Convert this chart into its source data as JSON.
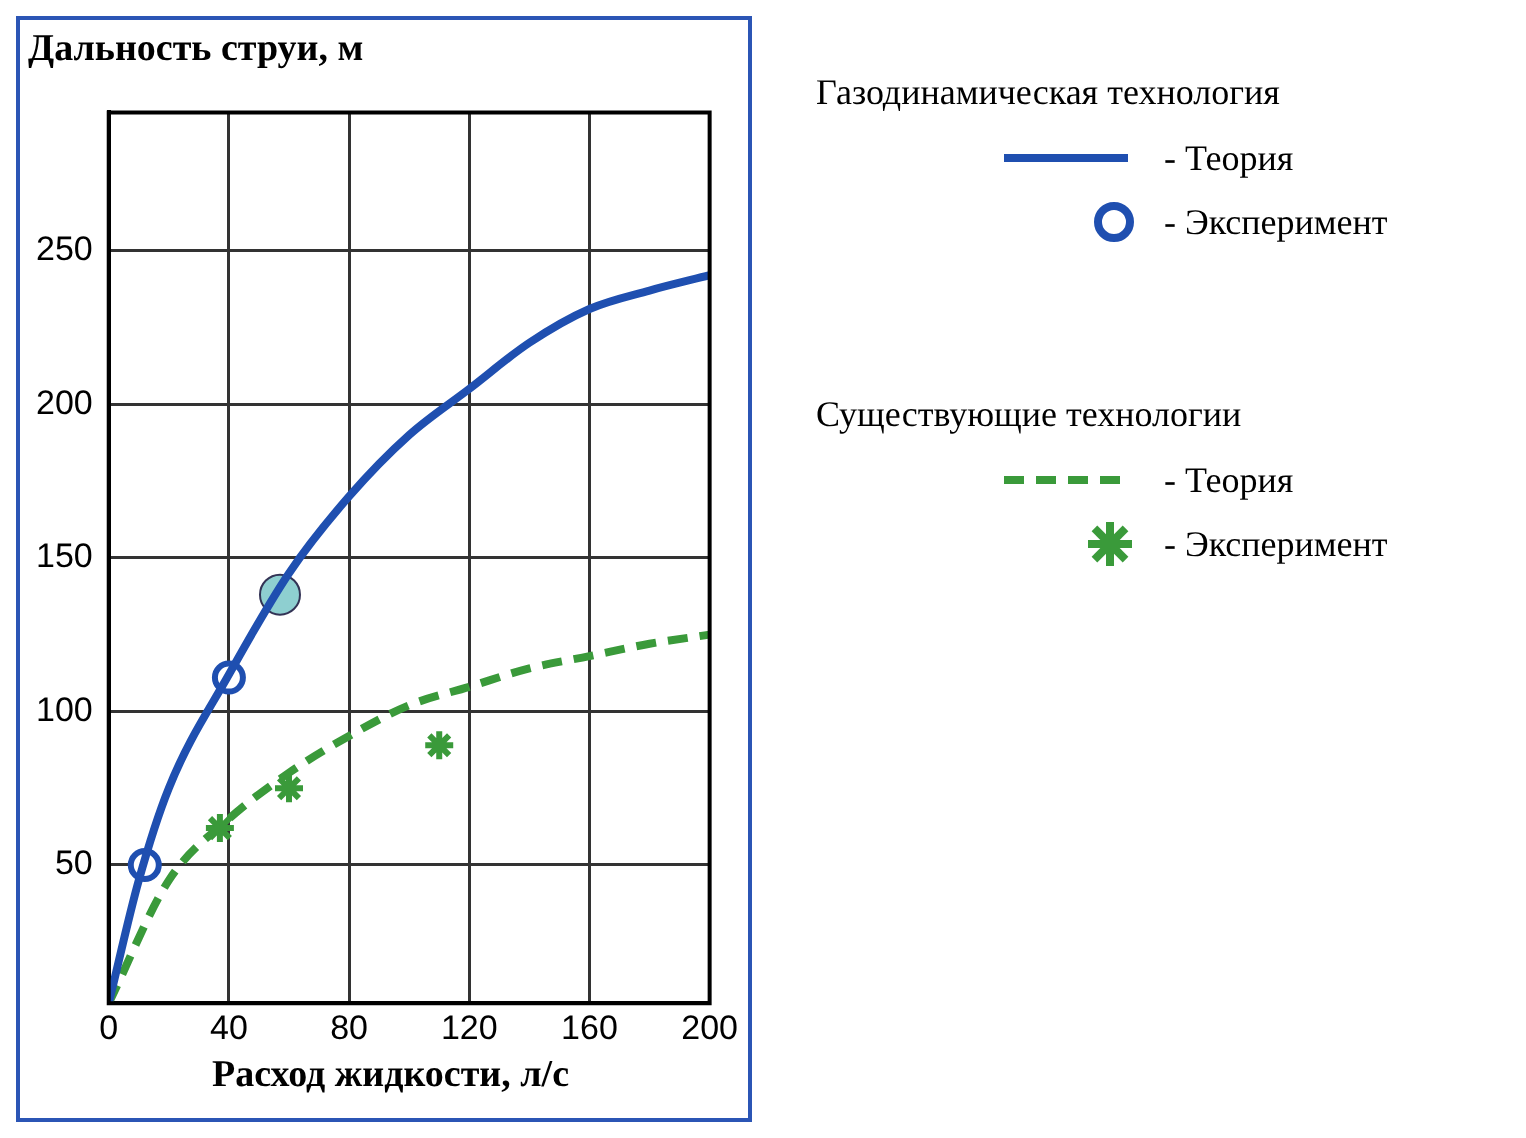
{
  "chart_data": {
    "type": "line",
    "xlabel": "Расход жидкости, л/с",
    "ylabel": "Дальность струи, м",
    "xlim": [
      0,
      200
    ],
    "xticks": [
      0,
      40,
      80,
      120,
      160,
      200
    ],
    "ylim": [
      5,
      295
    ],
    "yticks": [
      50,
      100,
      150,
      200,
      250
    ],
    "grid": true,
    "legend": "right",
    "annotations": [
      "Газодинамическая технология",
      "Существующие технологии"
    ],
    "series": [
      {
        "name": "- Теория",
        "color": "#1f4fb0",
        "line_style": "solid",
        "marker": "none",
        "x": [
          0,
          10,
          20,
          40,
          60,
          80,
          100,
          120,
          140,
          160,
          180,
          200
        ],
        "values": [
          5,
          45,
          75,
          112,
          145,
          170,
          190,
          205,
          220,
          231,
          237,
          242
        ]
      },
      {
        "name": "- Эксперимент",
        "type": "scatter",
        "color": "#1f4fb0",
        "marker": "circle",
        "x": [
          12,
          40
        ],
        "values": [
          50,
          111
        ]
      },
      {
        "name": "- Теория",
        "color": "#3a9a3a",
        "line_style": "dashed",
        "marker": "none",
        "x": [
          0,
          20,
          40,
          60,
          80,
          100,
          120,
          140,
          160,
          180,
          200
        ],
        "values": [
          5,
          45,
          65,
          80,
          92,
          102,
          108,
          114,
          118,
          122,
          125
        ]
      },
      {
        "name": "- Эксперимент",
        "type": "scatter",
        "color": "#3a9a3a",
        "marker": "cross",
        "x": [
          37,
          60,
          110
        ],
        "values": [
          62,
          75,
          89
        ]
      },
      {
        "type": "scatter",
        "color": "#8ecfd0",
        "marker": "circle",
        "x": [
          57
        ],
        "values": [
          138
        ]
      }
    ]
  }
}
